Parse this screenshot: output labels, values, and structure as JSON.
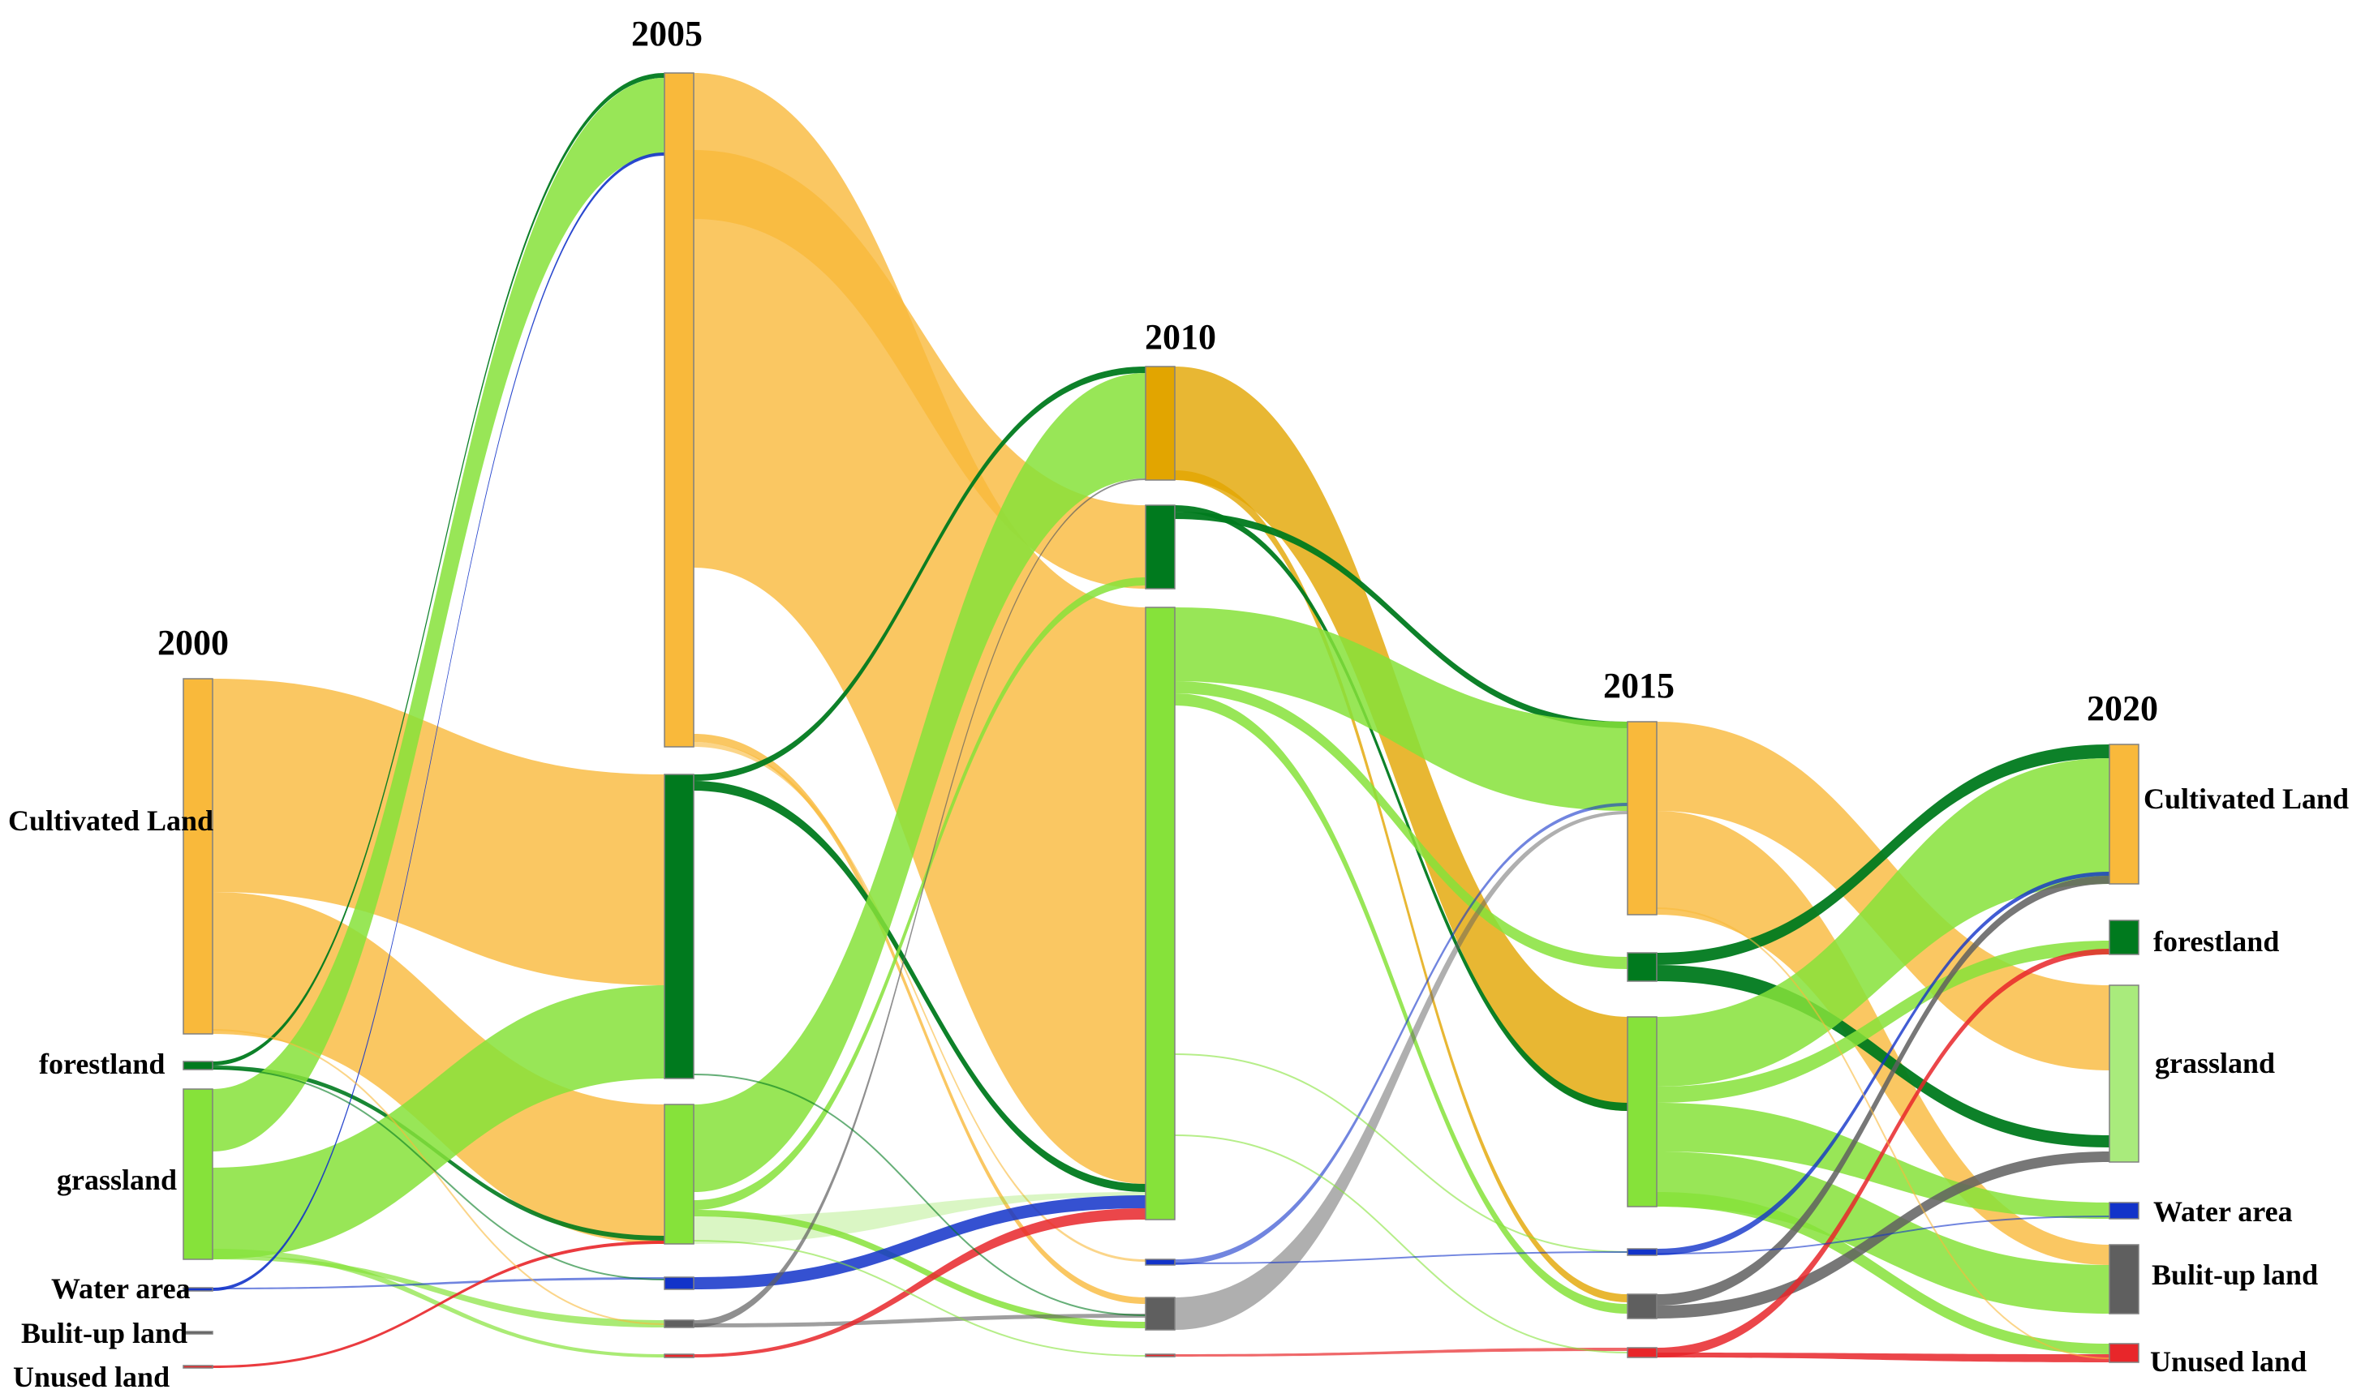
{
  "years": [
    "2000",
    "2005",
    "2010",
    "2015",
    "2020"
  ],
  "categories": {
    "cultivated": "Cultivated Land",
    "forest": "forestland",
    "grass": "grassland",
    "water": "Water area",
    "built": "Bulit-up land",
    "unused": "Unused land"
  },
  "colors": {
    "cultivated": "#F9B93B",
    "cultivated_2010": "#E2A500",
    "forest": "#007A1E",
    "grass": "#86E23A",
    "grass_2020": "#A9EB7C",
    "water": "#1233C9",
    "built": "#5F5F5F",
    "unused": "#E8262A"
  }
}
